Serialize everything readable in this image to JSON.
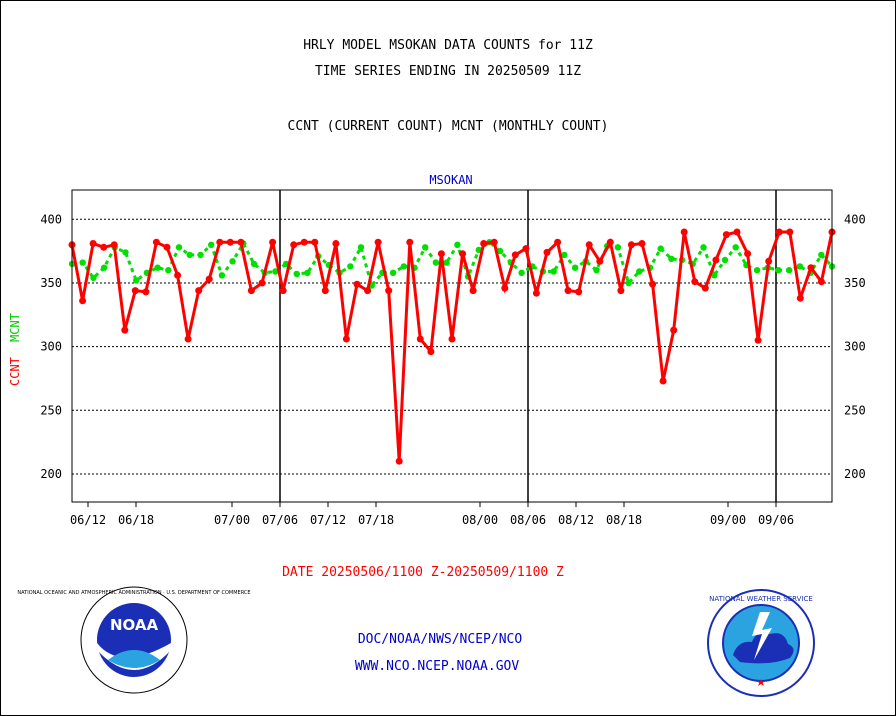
{
  "title_line1": "HRLY MODEL MSOKAN DATA COUNTS for 11Z",
  "title_line2": "TIME SERIES ENDING IN 20250509 11Z",
  "subtitle": "CCNT (CURRENT COUNT) MCNT (MONTHLY COUNT)",
  "date_range": "DATE 20250506/1100 Z-20250509/1100 Z",
  "footer_line1": "DOC/NOAA/NWS/NCEP/NCO",
  "footer_line2": "WWW.NCO.NCEP.NOAA.GOV",
  "logos": {
    "left": {
      "name": "noaa-logo",
      "text": "NOAA",
      "ring_text": "NATIONAL OCEANIC AND ATMOSPHERIC ADMINISTRATION · U.S. DEPARTMENT OF COMMERCE"
    },
    "right": {
      "name": "nws-logo",
      "ring_text": "NATIONAL WEATHER SERVICE"
    }
  },
  "colors": {
    "ccnt": "#ff0000",
    "mcnt": "#00e000",
    "station": "#0000cc",
    "date": "#ff0000",
    "footer": "#0000cc"
  },
  "chart_data": {
    "type": "line",
    "title": "MSOKAN",
    "ylabel_ccnt": "CCNT",
    "ylabel_mcnt": "MCNT",
    "ylim": [
      178,
      423
    ],
    "y_ticks": [
      200,
      250,
      300,
      350,
      400
    ],
    "x_start_day": 161,
    "x_end_day": 256,
    "x_ticks": [
      {
        "label": "06/12",
        "day": 163
      },
      {
        "label": "06/18",
        "day": 169
      },
      {
        "label": "07/00",
        "day": 181
      },
      {
        "label": "07/06",
        "day": 187
      },
      {
        "label": "07/12",
        "day": 193
      },
      {
        "label": "07/18",
        "day": 199
      },
      {
        "label": "08/00",
        "day": 212
      },
      {
        "label": "08/06",
        "day": 218
      },
      {
        "label": "08/12",
        "day": 224
      },
      {
        "label": "08/18",
        "day": 230
      },
      {
        "label": "09/00",
        "day": 243
      },
      {
        "label": "09/06",
        "day": 249
      }
    ],
    "vertical_lines_days": [
      187,
      218,
      249
    ],
    "grid": true,
    "series": [
      {
        "name": "CCNT",
        "color": "#ff0000",
        "values": [
          380,
          336,
          381,
          378,
          380,
          313,
          344,
          343,
          382,
          378,
          356,
          306,
          344,
          353,
          382,
          382,
          382,
          344,
          350,
          382,
          344,
          380,
          382,
          382,
          344,
          381,
          306,
          349,
          344,
          382,
          344,
          210,
          382,
          306,
          296,
          373,
          306,
          373,
          344,
          381,
          382,
          346,
          372,
          377,
          342,
          374,
          382,
          344,
          343,
          380,
          367,
          382,
          344,
          380,
          381,
          349,
          273,
          313,
          390,
          351,
          346,
          368,
          388,
          390,
          373,
          305,
          367,
          390,
          390,
          338,
          362,
          351,
          390
        ]
      },
      {
        "name": "MCNT",
        "color": "#00e000",
        "values": [
          365,
          366,
          354,
          362,
          378,
          374,
          352,
          358,
          362,
          360,
          378,
          372,
          372,
          380,
          356,
          367,
          381,
          365,
          358,
          359,
          365,
          357,
          358,
          371,
          364,
          358,
          363,
          378,
          348,
          358,
          358,
          363,
          362,
          378,
          366,
          366,
          380,
          355,
          376,
          382,
          375,
          366,
          358,
          363,
          359,
          359,
          372,
          362,
          367,
          360,
          379,
          378,
          350,
          359,
          362,
          377,
          369,
          368,
          365,
          378,
          356,
          368,
          378,
          364,
          360,
          362,
          360,
          360,
          363,
          358,
          372,
          363
        ]
      }
    ]
  }
}
